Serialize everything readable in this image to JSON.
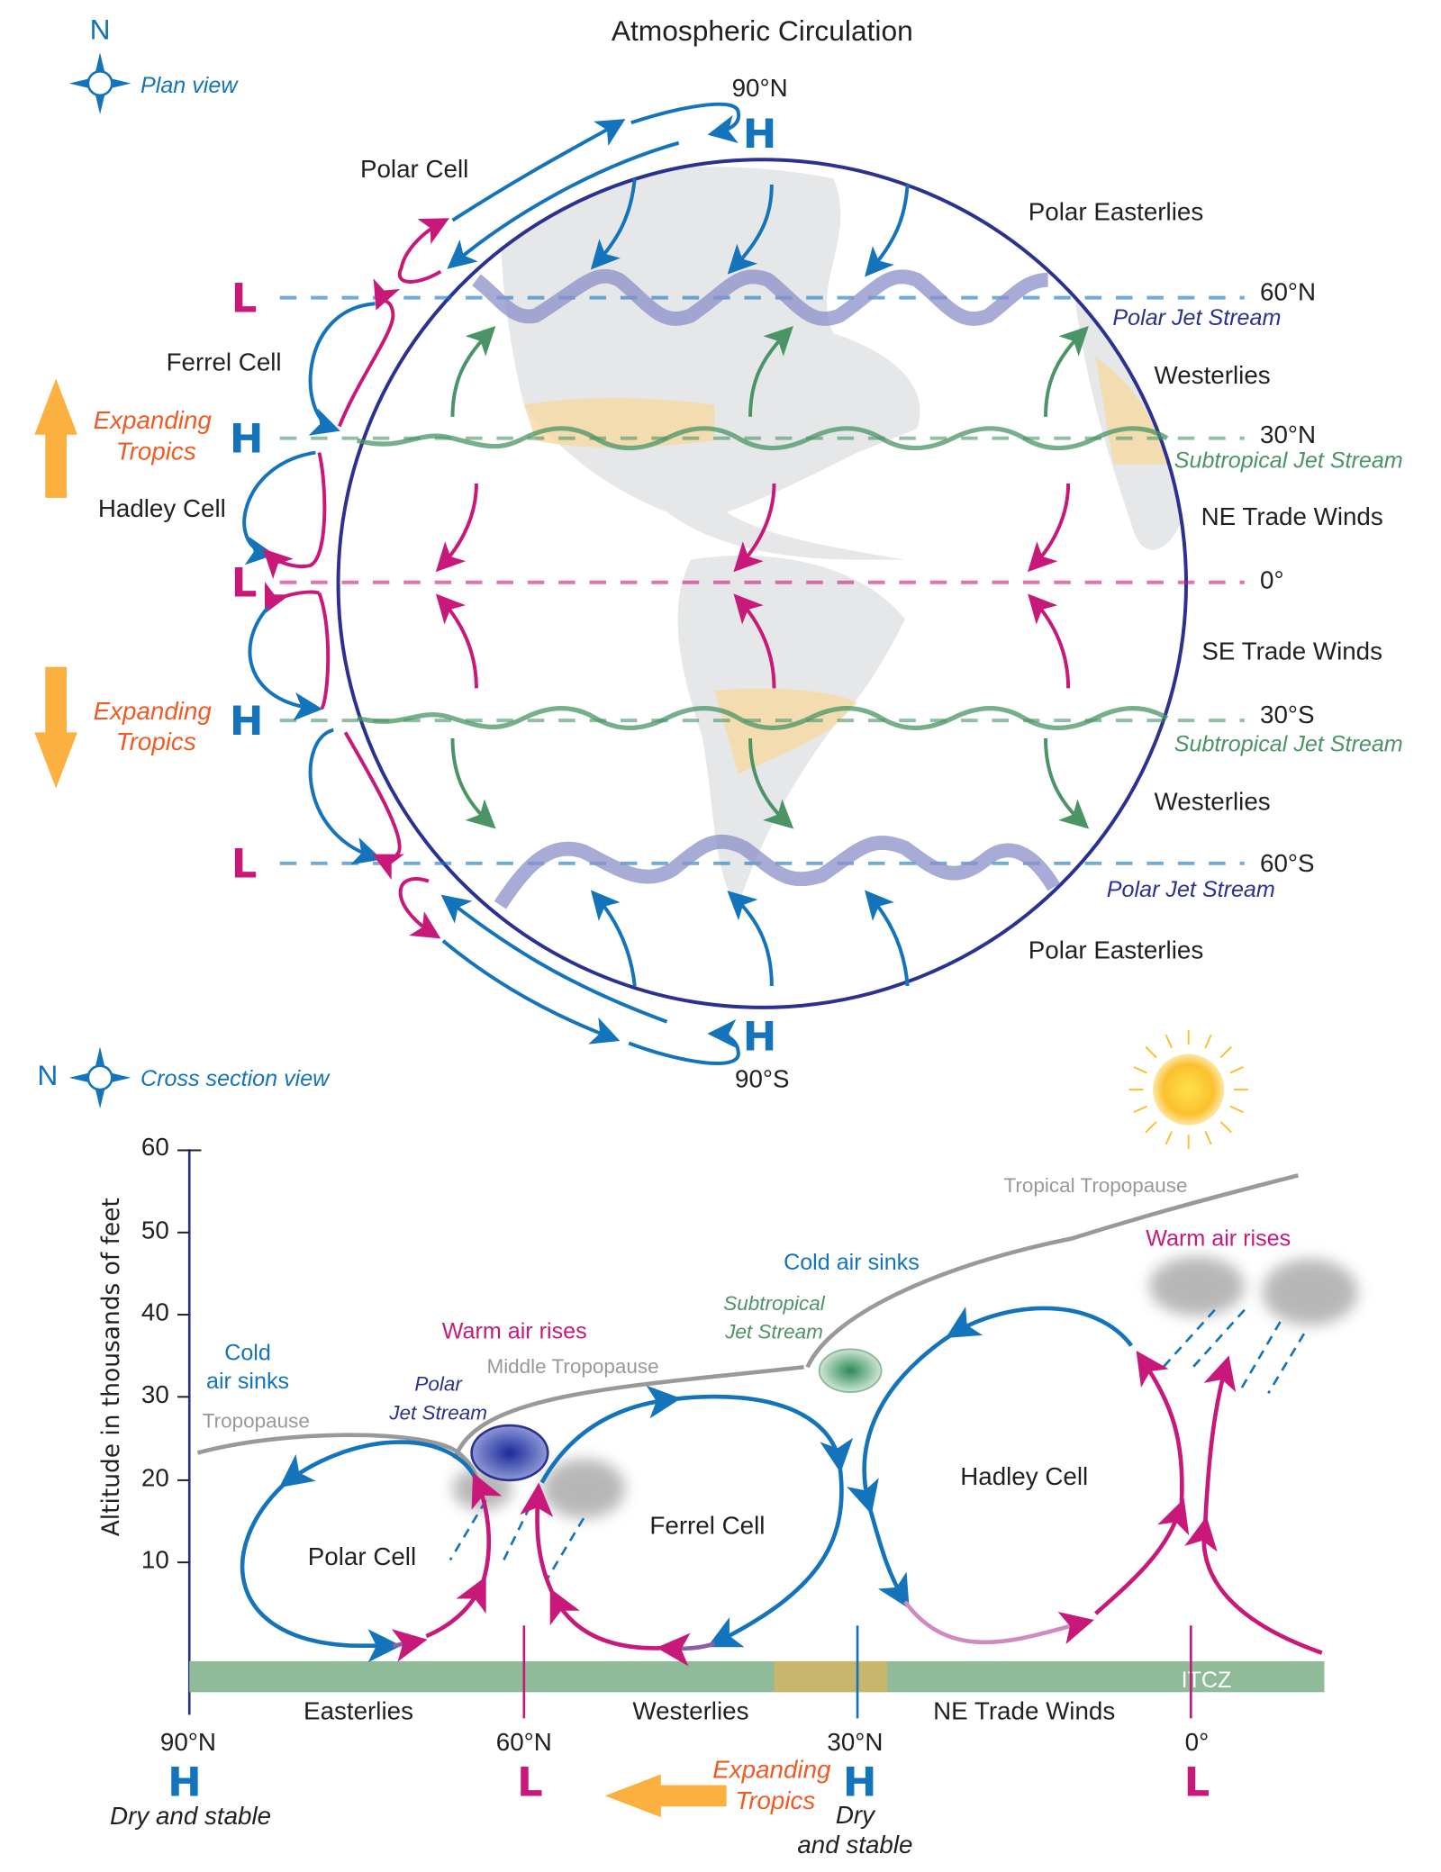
{
  "title": "Atmospheric Circulation",
  "colors": {
    "blue": "#1474bb",
    "magenta": "#c8197a",
    "green": "#4a9466",
    "navy": "#2b3191",
    "orange": "#f15a24",
    "arrow_orange": "#fbb040",
    "gray": "#999999",
    "ground": "#8fbb99"
  },
  "plan_view": {
    "compass_letter": "N",
    "view_label": "Plan view",
    "pole_north": {
      "label": "90°N",
      "pressure": "H"
    },
    "pole_south": {
      "label": "90°S",
      "pressure": "H"
    },
    "latitudes": [
      {
        "label": "60°N",
        "pressure": "L"
      },
      {
        "label": "30°N",
        "pressure": "H"
      },
      {
        "label": "0°",
        "pressure": "L"
      },
      {
        "label": "30°S",
        "pressure": "H"
      },
      {
        "label": "60°S",
        "pressure": "L"
      }
    ],
    "jet_streams": {
      "polar_n": "Polar Jet Stream",
      "subtropical_n": "Subtropical Jet Stream",
      "subtropical_s": "Subtropical Jet Stream",
      "polar_s": "Polar Jet Stream"
    },
    "winds": [
      "Polar Easterlies",
      "Westerlies",
      "NE Trade Winds",
      "SE Trade Winds",
      "Westerlies",
      "Polar Easterlies"
    ],
    "cells": [
      "Polar Cell",
      "Ferrel Cell",
      "Hadley Cell"
    ],
    "expanding_tropics": [
      "Expanding",
      "Tropics"
    ]
  },
  "cross_section": {
    "compass_letter": "N",
    "view_label": "Cross section view",
    "y_axis_label": "Altitude in thousands of feet",
    "y_ticks": [
      "60",
      "50",
      "40",
      "30",
      "20",
      "10"
    ],
    "tropopause": {
      "polar": "Tropopause",
      "middle": "Middle Tropopause",
      "tropical": "Tropical Tropopause"
    },
    "annotations": {
      "cold_air_sinks_1": [
        "Cold",
        "air sinks"
      ],
      "warm_air_rises_1": "Warm air rises",
      "polar_jet": [
        "Polar",
        "Jet Stream"
      ],
      "subtropical_jet": [
        "Subtropical",
        "Jet Stream"
      ],
      "cold_air_sinks_2": "Cold air sinks",
      "warm_air_rises_2": "Warm air rises"
    },
    "cells": [
      "Polar Cell",
      "Ferrel Cell",
      "Hadley Cell"
    ],
    "itcz": "ITCZ",
    "surface_winds": [
      "Easterlies",
      "Westerlies",
      "NE Trade Winds"
    ],
    "latitudes": [
      {
        "label": "90°N",
        "pressure": "H"
      },
      {
        "label": "60°N",
        "pressure": "L"
      },
      {
        "label": "30°N",
        "pressure": "H"
      },
      {
        "label": "0°",
        "pressure": "L"
      }
    ],
    "dry_stable_1": "Dry and stable",
    "dry_stable_2": [
      "Dry",
      "and stable"
    ],
    "expanding_tropics": [
      "Expanding",
      "Tropics"
    ]
  }
}
